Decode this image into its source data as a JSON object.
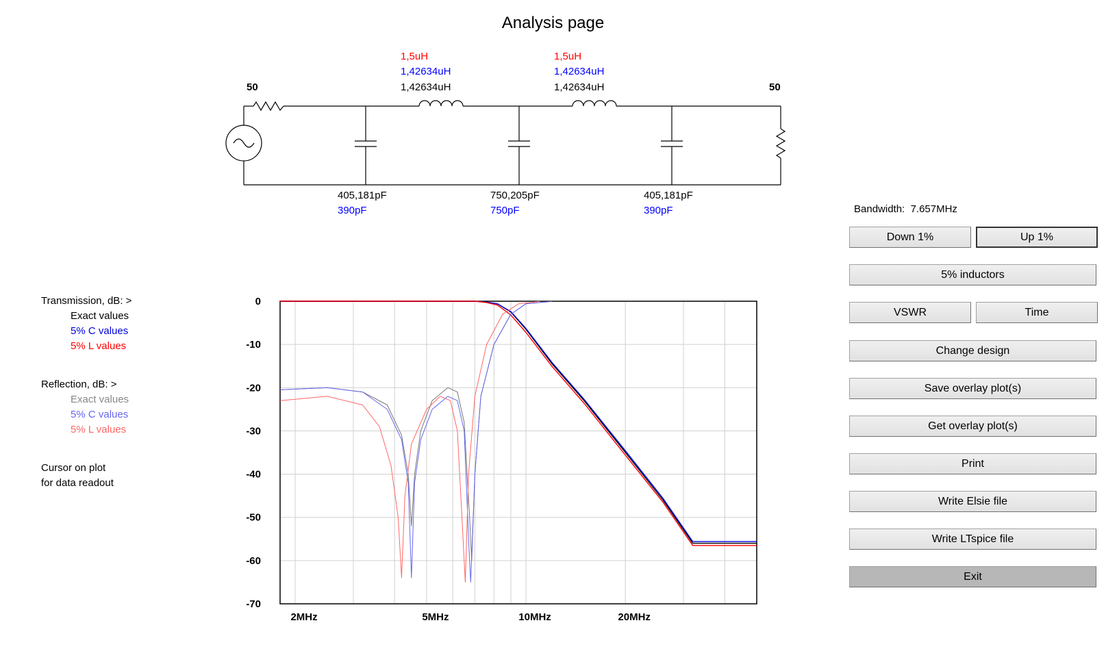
{
  "title": "Analysis page",
  "schematic": {
    "source_impedance": "50",
    "load_impedance": "50",
    "inductors": [
      {
        "nominal": "1,5uH",
        "c5": "1,42634uH",
        "exact": "1,42634uH"
      },
      {
        "nominal": "1,5uH",
        "c5": "1,42634uH",
        "exact": "1,42634uH"
      }
    ],
    "capacitors": [
      {
        "exact": "405,181pF",
        "nominal": "390pF"
      },
      {
        "exact": "750,205pF",
        "nominal": "750pF"
      },
      {
        "exact": "405,181pF",
        "nominal": "390pF"
      }
    ]
  },
  "legend": {
    "transmission_title": "Transmission, dB:  >",
    "transmission_items": [
      "Exact values",
      "5% C values",
      "5% L values"
    ],
    "reflection_title": "Reflection, dB:  >",
    "reflection_items": [
      "Exact values",
      "5% C values",
      "5% L values"
    ],
    "cursor_line1": "Cursor on plot",
    "cursor_line2": "for data readout"
  },
  "colors": {
    "nominal": "#ff0000",
    "c5": "#0000ff",
    "exact": "#000000",
    "trans_exact": "#000000",
    "trans_c": "#0000dd",
    "trans_l": "#ff0000",
    "refl_exact": "#777777",
    "refl_c": "#6666ee",
    "refl_l": "#ff6666"
  },
  "controls": {
    "bandwidth_label": "Bandwidth:",
    "bandwidth_value": "7.657MHz",
    "down": "Down 1%",
    "up": "Up 1%",
    "inductors": "5% inductors",
    "vswr": "VSWR",
    "time": "Time",
    "change_design": "Change design",
    "save_overlay": "Save overlay plot(s)",
    "get_overlay": "Get overlay plot(s)",
    "print": "Print",
    "write_elsie": "Write Elsie file",
    "write_ltspice": "Write LTspice file",
    "exit": "Exit"
  },
  "chart_data": {
    "type": "line",
    "xscale": "log",
    "xlim": [
      1.8,
      50
    ],
    "ylim": [
      -70,
      0
    ],
    "ylabel_ticks": [
      "0",
      "-10",
      "-20",
      "-30",
      "-40",
      "-50",
      "-60",
      "-70"
    ],
    "xticks": [
      {
        "f": 2,
        "label": "2MHz"
      },
      {
        "f": 5,
        "label": "5MHz"
      },
      {
        "f": 10,
        "label": "10MHz"
      },
      {
        "f": 20,
        "label": "20MHz"
      }
    ],
    "grid": true,
    "series": [
      {
        "name": "Exact values",
        "group": "Transmission",
        "x": [
          1.8,
          6,
          7,
          7.6,
          8.2,
          9,
          10,
          12,
          15,
          20,
          26,
          32,
          50
        ],
        "y": [
          0,
          0,
          0,
          -0.2,
          -0.6,
          -2.5,
          -6.5,
          -14.5,
          -23,
          -35,
          -46,
          -56,
          -56
        ]
      },
      {
        "name": "5% C values",
        "group": "Transmission",
        "x": [
          1.8,
          6,
          7,
          7.6,
          8.2,
          9,
          10,
          12,
          15,
          20,
          26,
          32,
          50
        ],
        "y": [
          0,
          0,
          0,
          -0.2,
          -0.6,
          -2.4,
          -6.3,
          -14.2,
          -22.7,
          -34.6,
          -45.6,
          -55.6,
          -55.6
        ]
      },
      {
        "name": "5% L values",
        "group": "Transmission",
        "x": [
          1.8,
          6,
          7,
          7.6,
          8.2,
          9,
          10,
          12,
          15,
          20,
          26,
          32,
          50
        ],
        "y": [
          0,
          0,
          0,
          -0.3,
          -0.9,
          -3.2,
          -7.2,
          -15.1,
          -23.6,
          -35.6,
          -46.5,
          -56.5,
          -56.5
        ]
      },
      {
        "name": "Exact values",
        "group": "Reflection",
        "x": [
          1.8,
          2.5,
          3.2,
          3.8,
          4.2,
          4.4,
          4.5,
          4.6,
          4.8,
          5.2,
          5.8,
          6.2,
          6.5,
          6.75,
          6.85,
          7.0,
          7.3,
          8.0,
          9.0,
          10.0,
          12.0
        ],
        "y": [
          -20.5,
          -20,
          -21,
          -24,
          -31,
          -40,
          -52,
          -40,
          -30,
          -23,
          -20,
          -21,
          -28,
          -50,
          -60,
          -40,
          -22,
          -10,
          -3,
          -0.6,
          -0.05
        ]
      },
      {
        "name": "5% C values",
        "group": "Reflection",
        "x": [
          1.8,
          2.5,
          3.2,
          3.8,
          4.2,
          4.4,
          4.5,
          4.6,
          4.8,
          5.2,
          5.8,
          6.2,
          6.5,
          6.7,
          6.8,
          7.0,
          7.3,
          8.0,
          9.0,
          10.0,
          12.0
        ],
        "y": [
          -20.5,
          -20,
          -21,
          -25,
          -32,
          -42,
          -64,
          -42,
          -32,
          -25,
          -22,
          -23,
          -30,
          -55,
          -65,
          -40,
          -22,
          -10,
          -3,
          -0.6,
          -0.05
        ]
      },
      {
        "name": "5% L values",
        "group": "Reflection",
        "x": [
          1.8,
          2.5,
          3.2,
          3.6,
          3.9,
          4.1,
          4.2,
          4.3,
          4.5,
          5.0,
          5.5,
          5.9,
          6.2,
          6.45,
          6.55,
          6.7,
          7.0,
          7.6,
          8.5,
          9.5,
          11.0
        ],
        "y": [
          -23,
          -22,
          -24,
          -29,
          -38,
          -50,
          -64,
          -45,
          -33,
          -25,
          -22,
          -23,
          -30,
          -55,
          -65,
          -40,
          -22,
          -10,
          -3,
          -0.6,
          -0.05
        ]
      }
    ]
  }
}
